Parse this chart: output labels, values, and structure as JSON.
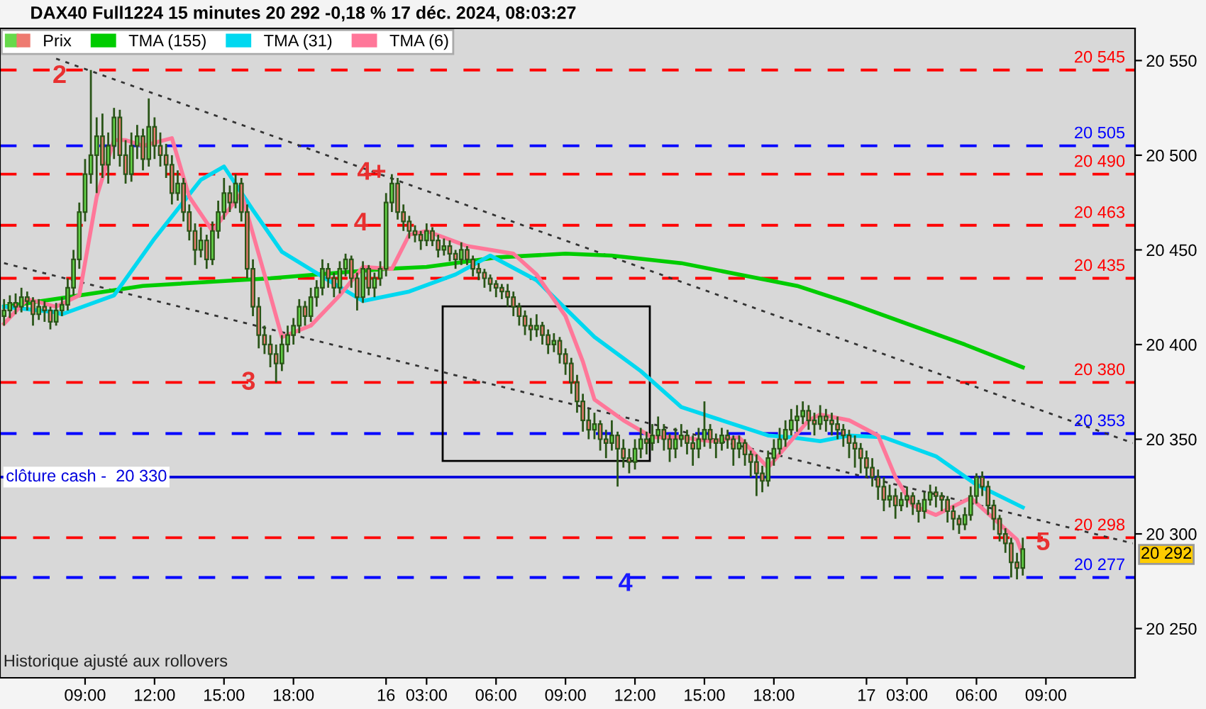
{
  "chart_data": {
    "type": "candlestick",
    "title": "DAX40 Full1224 15 minutes 20 292 -0,18 % 17 déc. 2024, 08:03:27",
    "ylim": [
      20224,
      20567
    ],
    "categories": [
      null,
      null,
      null,
      null,
      null,
      null,
      null,
      null,
      null,
      null,
      null,
      null,
      null,
      null,
      "09:00",
      null,
      null,
      null,
      null,
      null,
      null,
      null,
      null,
      null,
      null,
      null,
      "12:00",
      null,
      null,
      null,
      null,
      null,
      null,
      null,
      null,
      null,
      null,
      null,
      "15:00",
      null,
      null,
      null,
      null,
      null,
      null,
      null,
      null,
      null,
      null,
      null,
      "18:00",
      null,
      null,
      null,
      null,
      null,
      null,
      null,
      null,
      null,
      null,
      null,
      null,
      null,
      null,
      null,
      "16",
      null,
      null,
      null,
      null,
      null,
      null,
      "03:00",
      null,
      null,
      null,
      null,
      null,
      null,
      null,
      null,
      null,
      null,
      null,
      "06:00",
      null,
      null,
      null,
      null,
      null,
      null,
      null,
      null,
      null,
      null,
      null,
      "09:00",
      null,
      null,
      null,
      null,
      null,
      null,
      null,
      null,
      null,
      null,
      null,
      "12:00",
      null,
      null,
      null,
      null,
      null,
      null,
      null,
      null,
      null,
      null,
      null,
      "15:00",
      null,
      null,
      null,
      null,
      null,
      null,
      null,
      null,
      null,
      null,
      null,
      "18:00",
      null,
      null,
      null,
      null,
      null,
      null,
      null,
      null,
      null,
      null,
      null,
      null,
      null,
      null,
      null,
      "17",
      null,
      null,
      null,
      null,
      null,
      null,
      "03:00",
      null,
      null,
      null,
      null,
      null,
      null,
      null,
      null,
      null,
      null,
      null,
      "06:00",
      null,
      null,
      null,
      null,
      null,
      null,
      null,
      null,
      null,
      null,
      null,
      "09:00",
      null,
      null,
      null,
      null,
      null,
      null,
      null,
      null,
      null,
      null,
      null,
      null,
      null,
      null,
      null
    ],
    "yticks": [
      {
        "value": 20250,
        "label": "20 250"
      },
      {
        "value": 20300,
        "label": "20 300"
      },
      {
        "value": 20350,
        "label": "20 350"
      },
      {
        "value": 20400,
        "label": "20 400"
      },
      {
        "value": 20450,
        "label": "20 450"
      },
      {
        "value": 20500,
        "label": "20 500"
      },
      {
        "value": 20550,
        "label": "20 550"
      }
    ],
    "grid": false,
    "legend": "top left",
    "series": [
      {
        "name": "Prix",
        "color": "#2a5518",
        "ohlc": [
          [
            20415,
            20424,
            20410,
            20418
          ],
          [
            20418,
            20426,
            20414,
            20422
          ],
          [
            20422,
            20427,
            20416,
            20420
          ],
          [
            20420,
            20430,
            20417,
            20425
          ],
          [
            20425,
            20428,
            20418,
            20423
          ],
          [
            20423,
            20425,
            20410,
            20416
          ],
          [
            20416,
            20424,
            20413,
            20420
          ],
          [
            20420,
            20423,
            20412,
            20418
          ],
          [
            20418,
            20420,
            20408,
            20412
          ],
          [
            20412,
            20422,
            20410,
            20418
          ],
          [
            20418,
            20425,
            20415,
            20421
          ],
          [
            20421,
            20435,
            20418,
            20430
          ],
          [
            20430,
            20450,
            20426,
            20445
          ],
          [
            20445,
            20475,
            20440,
            20470
          ],
          [
            20470,
            20498,
            20465,
            20490
          ],
          [
            20490,
            20545,
            20485,
            20500
          ],
          [
            20500,
            20520,
            20480,
            20510
          ],
          [
            20510,
            20522,
            20488,
            20495
          ],
          [
            20495,
            20512,
            20485,
            20505
          ],
          [
            20505,
            20525,
            20498,
            20520
          ],
          [
            20520,
            20524,
            20494,
            20500
          ],
          [
            20500,
            20508,
            20485,
            20490
          ],
          [
            20490,
            20512,
            20486,
            20505
          ],
          [
            20505,
            20516,
            20498,
            20510
          ],
          [
            20510,
            20514,
            20492,
            20498
          ],
          [
            20498,
            20530,
            20494,
            20515
          ],
          [
            20515,
            20520,
            20498,
            20505
          ],
          [
            20505,
            20512,
            20494,
            20500
          ],
          [
            20500,
            20506,
            20488,
            20495
          ],
          [
            20495,
            20500,
            20474,
            20480
          ],
          [
            20480,
            20492,
            20476,
            20485
          ],
          [
            20485,
            20488,
            20465,
            20470
          ],
          [
            20470,
            20474,
            20455,
            20460
          ],
          [
            20460,
            20464,
            20442,
            20450
          ],
          [
            20450,
            20462,
            20446,
            20455
          ],
          [
            20455,
            20458,
            20440,
            20445
          ],
          [
            20445,
            20465,
            20442,
            20460
          ],
          [
            20460,
            20476,
            20456,
            20470
          ],
          [
            20470,
            20488,
            20466,
            20480
          ],
          [
            20480,
            20484,
            20470,
            20475
          ],
          [
            20475,
            20490,
            20472,
            20485
          ],
          [
            20485,
            20488,
            20465,
            20470
          ],
          [
            20470,
            20474,
            20435,
            20440
          ],
          [
            20440,
            20445,
            20415,
            20420
          ],
          [
            20420,
            20425,
            20398,
            20405
          ],
          [
            20405,
            20410,
            20395,
            20400
          ],
          [
            20400,
            20405,
            20388,
            20395
          ],
          [
            20395,
            20400,
            20380,
            20390
          ],
          [
            20390,
            20405,
            20386,
            20400
          ],
          [
            20400,
            20410,
            20396,
            20405
          ],
          [
            20405,
            20414,
            20400,
            20410
          ],
          [
            20410,
            20424,
            20406,
            20420
          ],
          [
            20420,
            20423,
            20410,
            20415
          ],
          [
            20415,
            20430,
            20412,
            20425
          ],
          [
            20425,
            20434,
            20420,
            20430
          ],
          [
            20430,
            20445,
            20426,
            20440
          ],
          [
            20440,
            20443,
            20430,
            20435
          ],
          [
            20435,
            20438,
            20425,
            20430
          ],
          [
            20430,
            20444,
            20427,
            20440
          ],
          [
            20440,
            20448,
            20436,
            20445
          ],
          [
            20445,
            20447,
            20430,
            20435
          ],
          [
            20435,
            20438,
            20418,
            20425
          ],
          [
            20425,
            20444,
            20422,
            20440
          ],
          [
            20440,
            20442,
            20426,
            20430
          ],
          [
            20430,
            20438,
            20425,
            20435
          ],
          [
            20435,
            20444,
            20431,
            20440
          ],
          [
            20440,
            20480,
            20436,
            20475
          ],
          [
            20475,
            20490,
            20470,
            20485
          ],
          [
            20485,
            20488,
            20466,
            20470
          ],
          [
            20470,
            20474,
            20460,
            20465
          ],
          [
            20465,
            20468,
            20456,
            20460
          ],
          [
            20460,
            20463,
            20454,
            20458
          ],
          [
            20458,
            20460,
            20450,
            20455
          ],
          [
            20455,
            20464,
            20452,
            20460
          ],
          [
            20460,
            20462,
            20452,
            20455
          ],
          [
            20455,
            20458,
            20446,
            20450
          ],
          [
            20450,
            20456,
            20447,
            20452
          ],
          [
            20452,
            20455,
            20444,
            20448
          ],
          [
            20448,
            20450,
            20440,
            20445
          ],
          [
            20445,
            20454,
            20442,
            20450
          ],
          [
            20450,
            20452,
            20442,
            20445
          ],
          [
            20445,
            20447,
            20436,
            20440
          ],
          [
            20440,
            20443,
            20434,
            20438
          ],
          [
            20438,
            20440,
            20430,
            20435
          ],
          [
            20435,
            20437,
            20428,
            20432
          ],
          [
            20432,
            20434,
            20425,
            20430
          ],
          [
            20430,
            20432,
            20424,
            20428
          ],
          [
            20428,
            20432,
            20420,
            20425
          ],
          [
            20425,
            20428,
            20415,
            20420
          ],
          [
            20420,
            20422,
            20410,
            20415
          ],
          [
            20415,
            20418,
            20405,
            20410
          ],
          [
            20410,
            20414,
            20402,
            20408
          ],
          [
            20408,
            20416,
            20404,
            20410
          ],
          [
            20410,
            20412,
            20400,
            20405
          ],
          [
            20405,
            20408,
            20395,
            20400
          ],
          [
            20400,
            20406,
            20396,
            20402
          ],
          [
            20402,
            20404,
            20390,
            20395
          ],
          [
            20395,
            20398,
            20384,
            20390
          ],
          [
            20390,
            20393,
            20374,
            20380
          ],
          [
            20380,
            20384,
            20364,
            20370
          ],
          [
            20370,
            20374,
            20354,
            20360
          ],
          [
            20360,
            20366,
            20350,
            20355
          ],
          [
            20355,
            20364,
            20350,
            20358
          ],
          [
            20358,
            20360,
            20344,
            20350
          ],
          [
            20350,
            20355,
            20340,
            20348
          ],
          [
            20348,
            20360,
            20344,
            20352
          ],
          [
            20352,
            20354,
            20325,
            20345
          ],
          [
            20345,
            20350,
            20335,
            20340
          ],
          [
            20340,
            20345,
            20332,
            20338
          ],
          [
            20338,
            20350,
            20334,
            20345
          ],
          [
            20345,
            20356,
            20340,
            20350
          ],
          [
            20350,
            20354,
            20342,
            20348
          ],
          [
            20348,
            20358,
            20344,
            20352
          ],
          [
            20352,
            20362,
            20348,
            20355
          ],
          [
            20355,
            20358,
            20344,
            20350
          ],
          [
            20350,
            20353,
            20338,
            20345
          ],
          [
            20345,
            20356,
            20340,
            20350
          ],
          [
            20350,
            20358,
            20346,
            20352
          ],
          [
            20352,
            20355,
            20342,
            20348
          ],
          [
            20348,
            20352,
            20336,
            20345
          ],
          [
            20345,
            20356,
            20340,
            20350
          ],
          [
            20350,
            20370,
            20346,
            20355
          ],
          [
            20355,
            20358,
            20345,
            20350
          ],
          [
            20350,
            20353,
            20340,
            20348
          ],
          [
            20348,
            20356,
            20344,
            20352
          ],
          [
            20352,
            20355,
            20345,
            20350
          ],
          [
            20350,
            20352,
            20336,
            20345
          ],
          [
            20345,
            20352,
            20340,
            20348
          ],
          [
            20348,
            20350,
            20336,
            20342
          ],
          [
            20342,
            20344,
            20330,
            20338
          ],
          [
            20338,
            20342,
            20320,
            20332
          ],
          [
            20332,
            20336,
            20322,
            20328
          ],
          [
            20328,
            20344,
            20325,
            20340
          ],
          [
            20340,
            20350,
            20336,
            20345
          ],
          [
            20345,
            20356,
            20342,
            20350
          ],
          [
            20350,
            20360,
            20346,
            20355
          ],
          [
            20355,
            20366,
            20352,
            20360
          ],
          [
            20360,
            20368,
            20354,
            20362
          ],
          [
            20362,
            20370,
            20358,
            20365
          ],
          [
            20365,
            20368,
            20355,
            20360
          ],
          [
            20360,
            20364,
            20352,
            20358
          ],
          [
            20358,
            20368,
            20355,
            20362
          ],
          [
            20362,
            20366,
            20354,
            20360
          ],
          [
            20360,
            20364,
            20352,
            20358
          ],
          [
            20358,
            20362,
            20350,
            20355
          ],
          [
            20355,
            20358,
            20346,
            20352
          ],
          [
            20352,
            20355,
            20340,
            20348
          ],
          [
            20348,
            20352,
            20335,
            20345
          ],
          [
            20345,
            20348,
            20332,
            20340
          ],
          [
            20340,
            20344,
            20330,
            20335
          ],
          [
            20335,
            20340,
            20325,
            20330
          ],
          [
            20330,
            20334,
            20318,
            20325
          ],
          [
            20325,
            20330,
            20312,
            20318
          ],
          [
            20318,
            20326,
            20314,
            20320
          ],
          [
            20320,
            20324,
            20308,
            20315
          ],
          [
            20315,
            20322,
            20312,
            20318
          ],
          [
            20318,
            20325,
            20314,
            20320
          ],
          [
            20320,
            20322,
            20310,
            20316
          ],
          [
            20316,
            20318,
            20306,
            20312
          ],
          [
            20312,
            20322,
            20308,
            20318
          ],
          [
            20318,
            20326,
            20315,
            20322
          ],
          [
            20322,
            20325,
            20314,
            20320
          ],
          [
            20320,
            20322,
            20312,
            20318
          ],
          [
            20318,
            20320,
            20306,
            20312
          ],
          [
            20312,
            20315,
            20302,
            20308
          ],
          [
            20308,
            20310,
            20300,
            20305
          ],
          [
            20305,
            20314,
            20302,
            20310
          ],
          [
            20310,
            20325,
            20307,
            20320
          ],
          [
            20320,
            20332,
            20316,
            20330
          ],
          [
            20330,
            20333,
            20320,
            20325
          ],
          [
            20325,
            20328,
            20310,
            20315
          ],
          [
            20315,
            20318,
            20302,
            20308
          ],
          [
            20308,
            20310,
            20296,
            20300
          ],
          [
            20300,
            20303,
            20290,
            20295
          ],
          [
            20295,
            20298,
            20277,
            20285
          ],
          [
            20285,
            20290,
            20276,
            20282
          ],
          [
            20282,
            20298,
            20278,
            20292
          ],
          null,
          null,
          null,
          null,
          null,
          null,
          null,
          null,
          null,
          null,
          null,
          null,
          null,
          null,
          null,
          null,
          null,
          null,
          null
        ]
      },
      {
        "name": "TMA (155)",
        "type": "line",
        "color": "#00cc00",
        "values": [
          20420,
          null,
          null,
          null,
          null,
          null,
          null,
          null,
          null,
          null,
          null,
          null,
          null,
          null,
          null,
          null,
          null,
          null,
          null,
          null,
          null,
          null,
          null,
          null,
          20431,
          null,
          null,
          null,
          null,
          null,
          null,
          null,
          null,
          null,
          null,
          null,
          null,
          null,
          null,
          null,
          null,
          null,
          null,
          null,
          null,
          null,
          20435,
          null,
          null,
          null,
          null,
          null,
          null,
          null,
          null,
          null,
          null,
          null,
          null,
          null,
          null,
          null,
          null,
          null,
          null,
          null,
          20440,
          null,
          null,
          null,
          null,
          null,
          null,
          20441,
          null,
          null,
          null,
          null,
          null,
          null,
          null,
          null,
          null,
          null,
          null,
          20446,
          null,
          null,
          null,
          null,
          null,
          null,
          null,
          null,
          null,
          null,
          null,
          20448,
          null,
          null,
          null,
          null,
          null,
          null,
          null,
          20447,
          null,
          null,
          null,
          null,
          null,
          null,
          null,
          null,
          null,
          null,
          null,
          20443,
          null,
          null,
          null,
          null,
          null,
          null,
          null,
          null,
          null,
          20437,
          null,
          null,
          null,
          null,
          null,
          null,
          null,
          null,
          null,
          20431,
          null,
          null,
          null,
          null,
          null,
          null,
          null,
          null,
          20422,
          null,
          null,
          null,
          null,
          null,
          null,
          null,
          null,
          null,
          20411,
          null,
          null,
          null,
          null,
          null,
          null,
          null,
          null,
          null,
          20400,
          null,
          null,
          null,
          null,
          null,
          null,
          null,
          null,
          null,
          20388,
          null,
          null,
          null,
          null,
          null,
          null,
          null,
          null,
          null,
          null,
          null,
          null,
          null,
          null,
          null,
          null,
          null,
          null,
          null
        ]
      },
      {
        "name": "TMA (31)",
        "type": "line",
        "values": [
          20420,
          null,
          null,
          null,
          null,
          null,
          null,
          null,
          null,
          20417,
          20416,
          null,
          null,
          null,
          null,
          null,
          null,
          null,
          null,
          20426,
          null,
          null,
          null,
          null,
          null,
          null,
          20456,
          null,
          null,
          null,
          null,
          null,
          null,
          null,
          20487,
          null,
          null,
          null,
          20494,
          null,
          null,
          null,
          null,
          20471,
          null,
          null,
          null,
          null,
          20449,
          null,
          null,
          null,
          null,
          null,
          null,
          null,
          20434,
          null,
          null,
          null,
          null,
          null,
          20423,
          null,
          null,
          null,
          null,
          null,
          null,
          null,
          20428,
          null,
          null,
          null,
          null,
          null,
          null,
          null,
          20437,
          null,
          null,
          null,
          null,
          null,
          20447,
          null,
          null,
          null,
          null,
          null,
          null,
          null,
          20434,
          null,
          null,
          null,
          null,
          null,
          null,
          null,
          null,
          null,
          20404,
          null,
          null,
          null,
          null,
          null,
          null,
          null,
          20386,
          null,
          null,
          null,
          null,
          null,
          null,
          20367,
          null,
          null,
          null,
          null,
          null,
          null,
          20360,
          null,
          null,
          null,
          null,
          null,
          null,
          null,
          20352,
          null,
          null,
          null,
          20351,
          null,
          null,
          null,
          null,
          20349,
          null,
          null,
          null,
          null,
          20352,
          null,
          null,
          null,
          null,
          null,
          20351,
          null,
          null,
          null,
          null,
          null,
          null,
          null,
          null,
          20341,
          null,
          null,
          null,
          null,
          null,
          null,
          20326,
          null,
          null,
          null,
          null,
          null,
          null,
          null,
          20314,
          null,
          null,
          null,
          null,
          null,
          null,
          null,
          null,
          null,
          null,
          null,
          null,
          null,
          null,
          null,
          null,
          null,
          null,
          null
        ],
        "color": "#00d8f0"
      },
      {
        "name": "TMA (6)",
        "type": "line",
        "values": [
          20411,
          null,
          null,
          null,
          20424,
          null,
          null,
          null,
          null,
          20420,
          null,
          null,
          null,
          20426,
          null,
          null,
          20478,
          null,
          null,
          20508,
          null,
          20508,
          null,
          null,
          20505,
          null,
          null,
          null,
          null,
          20509,
          null,
          null,
          20478,
          null,
          null,
          null,
          20460,
          null,
          null,
          null,
          null,
          20480,
          null,
          null,
          null,
          20437,
          null,
          null,
          20404,
          null,
          null,
          null,
          null,
          20410,
          null,
          null,
          null,
          null,
          20426,
          null,
          null,
          null,
          20441,
          null,
          null,
          null,
          null,
          20440,
          null,
          null,
          20458,
          null,
          null,
          20460,
          null,
          null,
          null,
          null,
          null,
          null,
          20452,
          null,
          null,
          null,
          null,
          null,
          null,
          null,
          20448,
          null,
          null,
          null,
          20437,
          null,
          null,
          null,
          null,
          20415,
          null,
          null,
          20391,
          null,
          20371,
          null,
          null,
          null,
          null,
          20360,
          null,
          null,
          null,
          null,
          20351,
          null,
          null,
          null,
          null,
          20351,
          null,
          null,
          null,
          null,
          20349,
          null,
          null,
          null,
          null,
          20351,
          null,
          null,
          null,
          null,
          20335,
          null,
          null,
          null,
          null,
          null,
          null,
          20360,
          null,
          20363,
          null,
          null,
          null,
          null,
          20360,
          null,
          null,
          null,
          null,
          20352,
          null,
          null,
          20330,
          null,
          null,
          20315,
          null,
          null,
          null,
          20310,
          null,
          null,
          null,
          null,
          null,
          20319,
          null,
          null,
          null,
          20308,
          null,
          null,
          null,
          20297,
          20289,
          null,
          null,
          null,
          null,
          null,
          null,
          null,
          null,
          null,
          null,
          null,
          null,
          null,
          null,
          null,
          null,
          null,
          null,
          null
        ],
        "color": "#ff7799"
      },
      {
        "type": "line",
        "color": "#333333",
        "line_style": "dotted",
        "values": [
          null,
          null,
          null,
          null,
          null,
          null,
          null,
          null,
          null,
          20551,
          null,
          null,
          null,
          null,
          null,
          null,
          null,
          null,
          null,
          null,
          null,
          null,
          null,
          null,
          null,
          null,
          null,
          null,
          null,
          null,
          null,
          null,
          null,
          null,
          null,
          null,
          null,
          null,
          null,
          null,
          null,
          null,
          null,
          null,
          null,
          null,
          null,
          null,
          null,
          null,
          null,
          null,
          null,
          null,
          null,
          null,
          null,
          null,
          null,
          null,
          null,
          null,
          null,
          null,
          null,
          null,
          null,
          null,
          null,
          null,
          null,
          null,
          null,
          null,
          null,
          null,
          null,
          null,
          null,
          null,
          null,
          null,
          null,
          null,
          null,
          null,
          null,
          null,
          null,
          null,
          null,
          null,
          null,
          null,
          null,
          null,
          null,
          null,
          null,
          null,
          null,
          null,
          null,
          null,
          null,
          null,
          null,
          null,
          null,
          null,
          null,
          null,
          null,
          null,
          null,
          null,
          null,
          null,
          null,
          null,
          null,
          null,
          null,
          null,
          null,
          null,
          null,
          null,
          null,
          null,
          null,
          null,
          null,
          null,
          null,
          null,
          null,
          null,
          null,
          null,
          null,
          null,
          null,
          null,
          null,
          null,
          null,
          null,
          null,
          null,
          null,
          null,
          null,
          null,
          null,
          null,
          null,
          null,
          null,
          null,
          null,
          null,
          null,
          null,
          null,
          null,
          null,
          null,
          null,
          null,
          null,
          null,
          null,
          null,
          null,
          null,
          null,
          null,
          null,
          null,
          null,
          null,
          null,
          null,
          null,
          null,
          null,
          null,
          null,
          null,
          null,
          null,
          null,
          null,
          null,
          20348
        ]
      },
      {
        "type": "line",
        "color": "#333333",
        "line_style": "dotted",
        "values": [
          20443,
          null,
          null,
          null,
          null,
          null,
          null,
          null,
          null,
          null,
          null,
          null,
          null,
          null,
          null,
          null,
          null,
          null,
          null,
          null,
          null,
          null,
          null,
          null,
          null,
          null,
          null,
          null,
          null,
          null,
          null,
          null,
          null,
          null,
          null,
          null,
          null,
          null,
          null,
          null,
          null,
          null,
          null,
          null,
          null,
          null,
          null,
          null,
          null,
          null,
          null,
          null,
          null,
          null,
          null,
          null,
          null,
          null,
          null,
          null,
          null,
          null,
          null,
          null,
          null,
          null,
          null,
          null,
          null,
          null,
          null,
          null,
          null,
          null,
          null,
          null,
          null,
          null,
          null,
          null,
          null,
          null,
          null,
          null,
          null,
          null,
          null,
          null,
          null,
          null,
          null,
          null,
          null,
          null,
          null,
          null,
          null,
          null,
          null,
          null,
          null,
          null,
          null,
          null,
          null,
          null,
          null,
          null,
          null,
          null,
          null,
          null,
          null,
          null,
          null,
          null,
          null,
          null,
          null,
          null,
          null,
          null,
          null,
          null,
          null,
          null,
          null,
          null,
          null,
          null,
          null,
          null,
          null,
          null,
          null,
          null,
          null,
          null,
          null,
          null,
          null,
          null,
          null,
          null,
          null,
          null,
          null,
          null,
          null,
          null,
          null,
          null,
          null,
          null,
          null,
          null,
          null,
          null,
          null,
          null,
          null,
          null,
          null,
          null,
          null,
          null,
          null,
          null,
          null,
          null,
          null,
          null,
          null,
          null,
          null,
          null,
          null,
          null,
          null,
          null,
          null,
          null,
          null,
          null,
          null,
          null,
          null,
          null,
          null,
          null,
          null,
          null,
          null,
          null,
          null,
          20295
        ]
      }
    ],
    "ref_lines": [
      {
        "axis": "y",
        "value": 20545,
        "label": "20 545",
        "color": "#ff0000",
        "line_style": "dashed"
      },
      {
        "axis": "y",
        "value": 20505,
        "label": "20 505",
        "color": "#0000ff",
        "line_style": "dashed"
      },
      {
        "axis": "y",
        "value": 20490,
        "label": "20 490",
        "color": "#ff0000",
        "line_style": "dashed"
      },
      {
        "axis": "y",
        "value": 20463,
        "label": "20 463",
        "color": "#ff0000",
        "line_style": "dashed"
      },
      {
        "axis": "y",
        "value": 20435,
        "label": "20 435",
        "color": "#ff0000",
        "line_style": "dashed"
      },
      {
        "axis": "y",
        "value": 20380,
        "label": "20 380",
        "color": "#ff0000",
        "line_style": "dashed"
      },
      {
        "axis": "y",
        "value": 20353,
        "label": "20 353",
        "color": "#0000ff",
        "line_style": "dashed"
      },
      {
        "axis": "y",
        "value": 20330,
        "label": "clôture cash -  20 330",
        "color": "#0000dd",
        "line_style": "solid"
      },
      {
        "axis": "y",
        "value": 20298,
        "label": "20 298",
        "color": "#ff0000",
        "line_style": "dashed"
      },
      {
        "axis": "y",
        "value": 20277,
        "label": "20 277",
        "color": "#0000ff",
        "line_style": "dashed"
      }
    ],
    "annotations": [
      "2",
      "3",
      "4",
      "4+",
      "4",
      "5",
      "20 292",
      "Historique ajusté aux rollovers"
    ]
  }
}
